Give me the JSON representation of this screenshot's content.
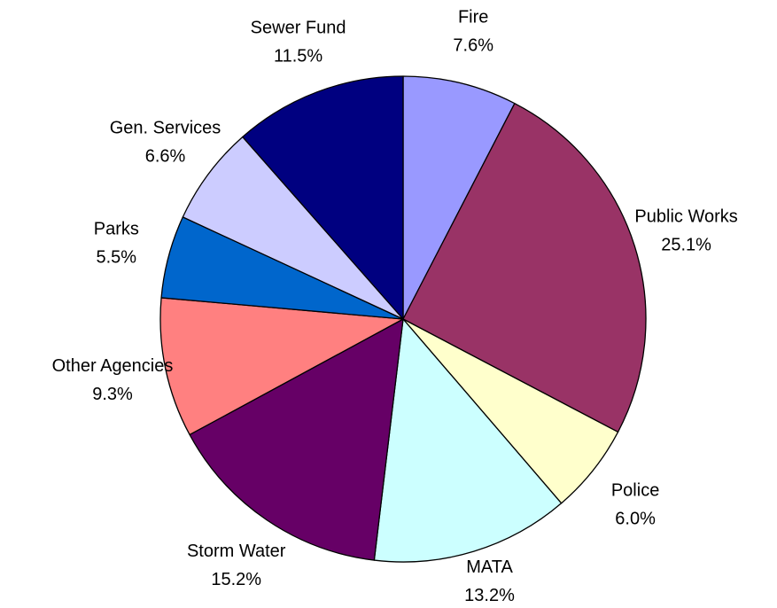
{
  "chart_data": {
    "type": "pie",
    "title": "",
    "slices": [
      {
        "label": "Fire",
        "value": 7.6,
        "value_label": "7.6%",
        "color": "#9999FF"
      },
      {
        "label": "Public Works",
        "value": 25.1,
        "value_label": "25.1%",
        "color": "#993366"
      },
      {
        "label": "Police",
        "value": 6.0,
        "value_label": "6.0%",
        "color": "#FFFFCC"
      },
      {
        "label": "MATA",
        "value": 13.2,
        "value_label": "13.2%",
        "color": "#CCFFFF"
      },
      {
        "label": "Storm Water",
        "value": 15.2,
        "value_label": "15.2%",
        "color": "#660066"
      },
      {
        "label": "Other Agencies",
        "value": 9.3,
        "value_label": "9.3%",
        "color": "#FF8080"
      },
      {
        "label": "Parks",
        "value": 5.5,
        "value_label": "5.5%",
        "color": "#0066CC"
      },
      {
        "label": "Gen. Services",
        "value": 6.6,
        "value_label": "6.6%",
        "color": "#CCCCFF"
      },
      {
        "label": "Sewer Fund",
        "value": 11.5,
        "value_label": "11.5%",
        "color": "#000080"
      }
    ],
    "start_angle_deg": 0,
    "direction": "clockwise",
    "legend": "none",
    "label_style": "category name and percentage outside slice"
  }
}
